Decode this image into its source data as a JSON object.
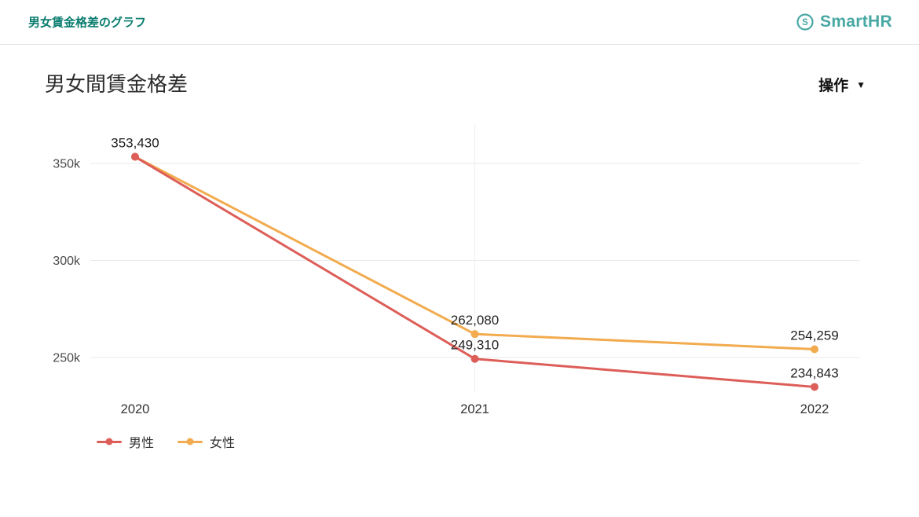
{
  "header": {
    "breadcrumb": "男女賃金格差のグラフ",
    "brand_name": "SmartHR",
    "brand_color": "#48a8a4"
  },
  "toolbar": {
    "title": "男女間賃金格差",
    "actions_label": "操作"
  },
  "chart_data": {
    "type": "line",
    "title": "男女間賃金格差",
    "categories": [
      "2020",
      "2021",
      "2022"
    ],
    "series": [
      {
        "name": "男性",
        "color": "#dd5e58",
        "values": [
          353430,
          249310,
          234843
        ],
        "labels": [
          "",
          "249,310",
          "234,843"
        ]
      },
      {
        "name": "女性",
        "color": "#f2ab4e",
        "values": [
          353430,
          262080,
          254259
        ],
        "labels": [
          "353,430",
          "262,080",
          "254,259"
        ]
      }
    ],
    "yticks": [
      {
        "value": 250000,
        "label": "250k"
      },
      {
        "value": 300000,
        "label": "300k"
      },
      {
        "value": 350000,
        "label": "350k"
      }
    ],
    "ylim": [
      230000,
      362000
    ],
    "grid": true,
    "vertical_gridline_at": "2021",
    "legend_position": "bottom-left"
  }
}
